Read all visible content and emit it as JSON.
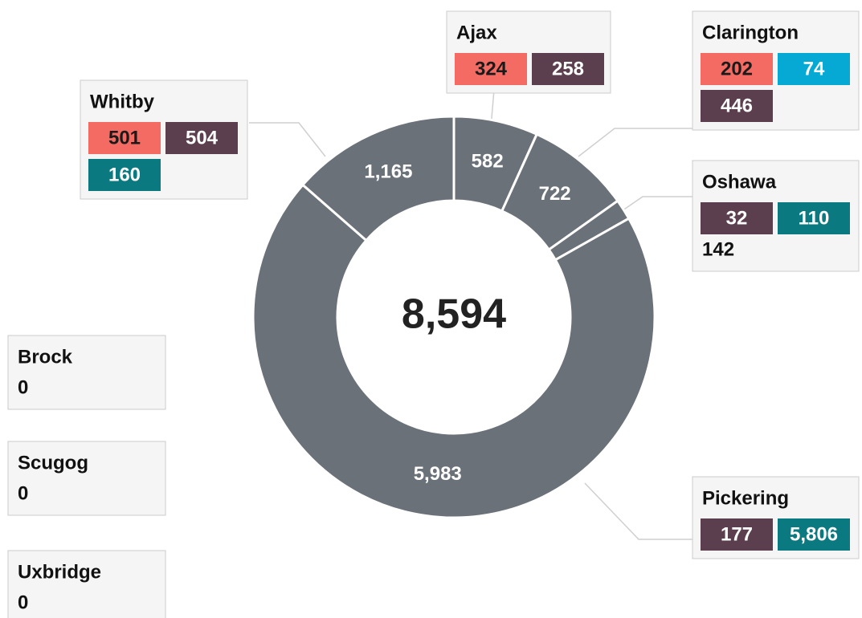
{
  "chart_data": {
    "type": "donut",
    "categories": [
      "Ajax",
      "Clarington",
      "Oshawa",
      "Pickering",
      "Whitby"
    ],
    "values": [
      582,
      722,
      142,
      5983,
      1165
    ],
    "value_labels": [
      "582",
      "722",
      null,
      "5,983",
      "1,165"
    ],
    "color": "#6b7179",
    "total": 8594,
    "total_label": "8,594",
    "districts": [
      {
        "name": "Ajax",
        "parts": [
          {
            "value": 324,
            "color": "#f36b63"
          },
          {
            "value": 258,
            "color": "#5c3f4f"
          }
        ]
      },
      {
        "name": "Clarington",
        "parts": [
          {
            "value": 202,
            "color": "#f36b63"
          },
          {
            "value": 74,
            "color": "#05a9d4"
          },
          {
            "value": 446,
            "color": "#5c3f4f"
          }
        ]
      },
      {
        "name": "Whitby",
        "parts": [
          {
            "value": 501,
            "color": "#f36b63"
          },
          {
            "value": 504,
            "color": "#5c3f4f"
          },
          {
            "value": 160,
            "color": "#0b7a80"
          }
        ]
      },
      {
        "name": "Oshawa",
        "parts": [
          {
            "value": 32,
            "color": "#5c3f4f"
          },
          {
            "value": 110,
            "color": "#0b7a80"
          }
        ],
        "total": 142
      },
      {
        "name": "Pickering",
        "parts": [
          {
            "value": 177,
            "color": "#5c3f4f"
          },
          {
            "value": 5806,
            "label": "5,806",
            "color": "#0b7a80"
          }
        ]
      },
      {
        "name": "Brock",
        "parts": [],
        "total": 0
      },
      {
        "name": "Scugog",
        "parts": [],
        "total": 0
      },
      {
        "name": "Uxbridge",
        "parts": [],
        "total": 0
      }
    ]
  }
}
